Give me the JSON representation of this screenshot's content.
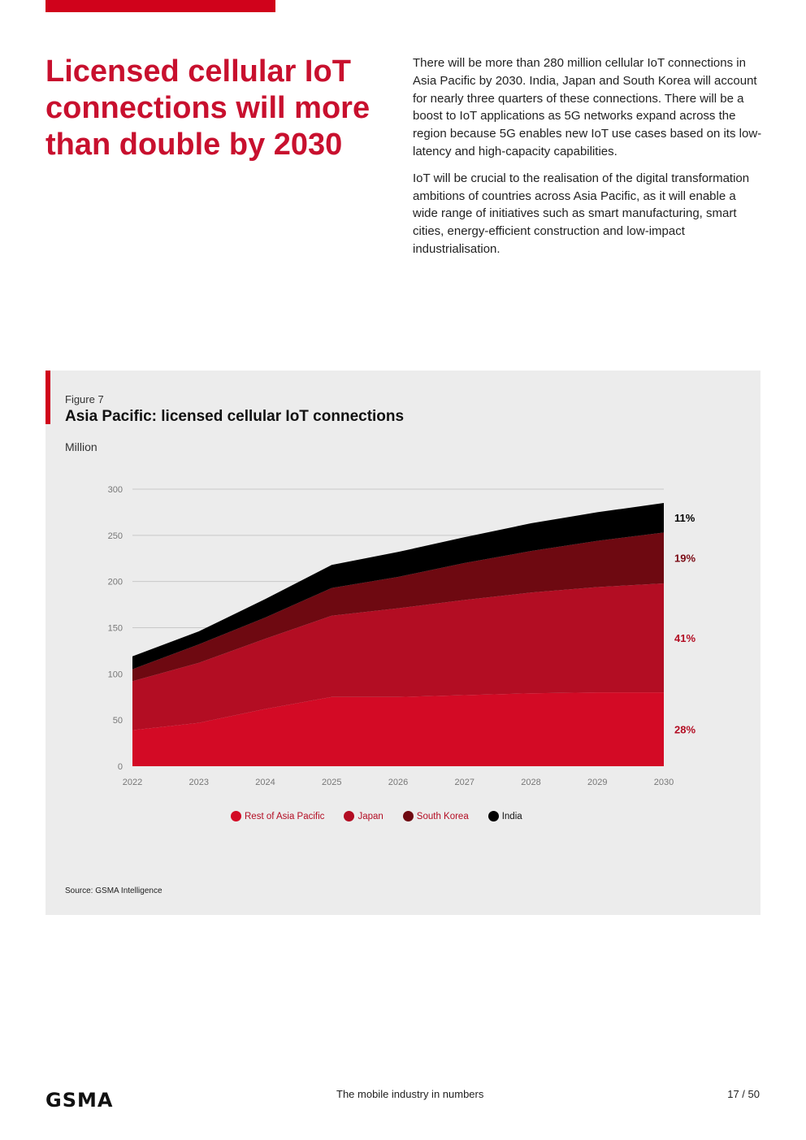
{
  "heading": "Licensed cellular IoT connections will more than double by 2030",
  "paragraphs": [
    "There will be more than 280 million cellular IoT connections in Asia Pacific by 2030. India, Japan and South Korea will account for nearly three quarters of these connections. There will be a boost to IoT applications as 5G networks expand across the region because 5G enables new IoT use cases based on its low-latency and high-capacity capabilities.",
    "IoT will be crucial to the realisation of the digital transformation ambitions of countries across Asia Pacific, as it will enable a wide range of initiatives such as smart manufacturing, smart cities, energy-efficient construction and low-impact industrialisation."
  ],
  "figure": {
    "label": "Figure 7",
    "title": "Asia Pacific: licensed cellular IoT connections",
    "unit": "Million",
    "source": "Source: GSMA Intelligence"
  },
  "chart_data": {
    "type": "area",
    "stacked": true,
    "title": "Asia Pacific: licensed cellular IoT connections",
    "ylabel": "Million",
    "ylim": [
      0,
      300
    ],
    "yticks": [
      0,
      50,
      100,
      150,
      200,
      250,
      300
    ],
    "x": [
      "2022",
      "2023",
      "2024",
      "2025",
      "2026",
      "2027",
      "2028",
      "2029",
      "2030"
    ],
    "grid": true,
    "legend_position": "bottom",
    "series": [
      {
        "name": "Rest of Asia Pacific",
        "color": "#d30a25",
        "values": [
          39,
          47,
          62,
          75,
          75,
          77,
          79,
          80,
          80
        ],
        "share_label": "28%"
      },
      {
        "name": "Japan",
        "color": "#b30d23",
        "values": [
          53,
          65,
          76,
          88,
          96,
          103,
          109,
          114,
          118
        ],
        "share_label": "41%"
      },
      {
        "name": "South Korea",
        "color": "#6e0911",
        "values": [
          13,
          20,
          23,
          30,
          34,
          40,
          45,
          50,
          55
        ],
        "share_label": "19%"
      },
      {
        "name": "India",
        "color": "#000000",
        "values": [
          14,
          14,
          20,
          25,
          27,
          28,
          30,
          31,
          32
        ],
        "share_label": "11%"
      }
    ]
  },
  "footer": {
    "logo": "GSMA",
    "center": "The mobile industry in numbers",
    "page": "17 / 50"
  }
}
